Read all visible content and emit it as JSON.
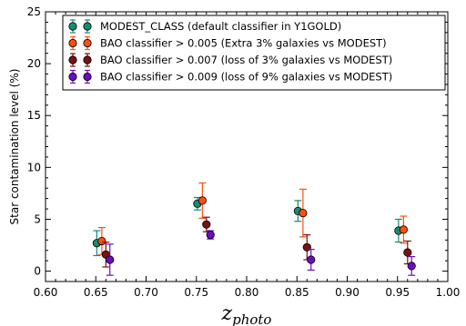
{
  "chart_data": {
    "type": "scatter",
    "title": "",
    "xlabel_main": "z",
    "xlabel_sub": "photo",
    "ylabel": "Star contamination level (%)",
    "xlim": [
      0.6,
      1.0
    ],
    "ylim": [
      -1,
      25
    ],
    "x_ticks": [
      "0.60",
      "0.65",
      "0.70",
      "0.75",
      "0.80",
      "0.85",
      "0.90",
      "0.95",
      "1.00"
    ],
    "y_ticks": [
      "0",
      "5",
      "10",
      "15",
      "20",
      "25"
    ],
    "legend_position": "top-left",
    "series": [
      {
        "name": "MODEST_CLASS (default classifier in Y1GOLD)",
        "color": "#1a8a72",
        "points": [
          {
            "x": 0.651,
            "y": 2.7,
            "err": 1.2
          },
          {
            "x": 0.751,
            "y": 6.5,
            "err": 0.6
          },
          {
            "x": 0.851,
            "y": 5.8,
            "err": 1.0
          },
          {
            "x": 0.951,
            "y": 3.9,
            "err": 1.1
          }
        ]
      },
      {
        "name": "BAO classifier > 0.005 (Extra 3% galaxies vs MODEST)",
        "color": "#ff4e0f",
        "points": [
          {
            "x": 0.656,
            "y": 2.9,
            "err": 1.3
          },
          {
            "x": 0.756,
            "y": 6.8,
            "err": 1.7
          },
          {
            "x": 0.856,
            "y": 5.6,
            "err": 2.3
          },
          {
            "x": 0.956,
            "y": 4.0,
            "err": 1.3
          }
        ]
      },
      {
        "name": "BAO classifier > 0.007 (loss of 3% galaxies vs MODEST)",
        "color": "#7b1010",
        "points": [
          {
            "x": 0.66,
            "y": 1.6,
            "err": 1.2
          },
          {
            "x": 0.76,
            "y": 4.5,
            "err": 0.7
          },
          {
            "x": 0.86,
            "y": 2.3,
            "err": 1.2
          },
          {
            "x": 0.96,
            "y": 1.8,
            "err": 1.1
          }
        ]
      },
      {
        "name": "BAO classifier > 0.009 (loss of 9% galaxies vs MODEST)",
        "color": "#6a0dc2",
        "points": [
          {
            "x": 0.664,
            "y": 1.1,
            "err": 1.5
          },
          {
            "x": 0.764,
            "y": 3.5,
            "err": 0.4
          },
          {
            "x": 0.864,
            "y": 1.1,
            "err": 1.0
          },
          {
            "x": 0.964,
            "y": 0.5,
            "err": 0.9
          }
        ]
      }
    ]
  }
}
